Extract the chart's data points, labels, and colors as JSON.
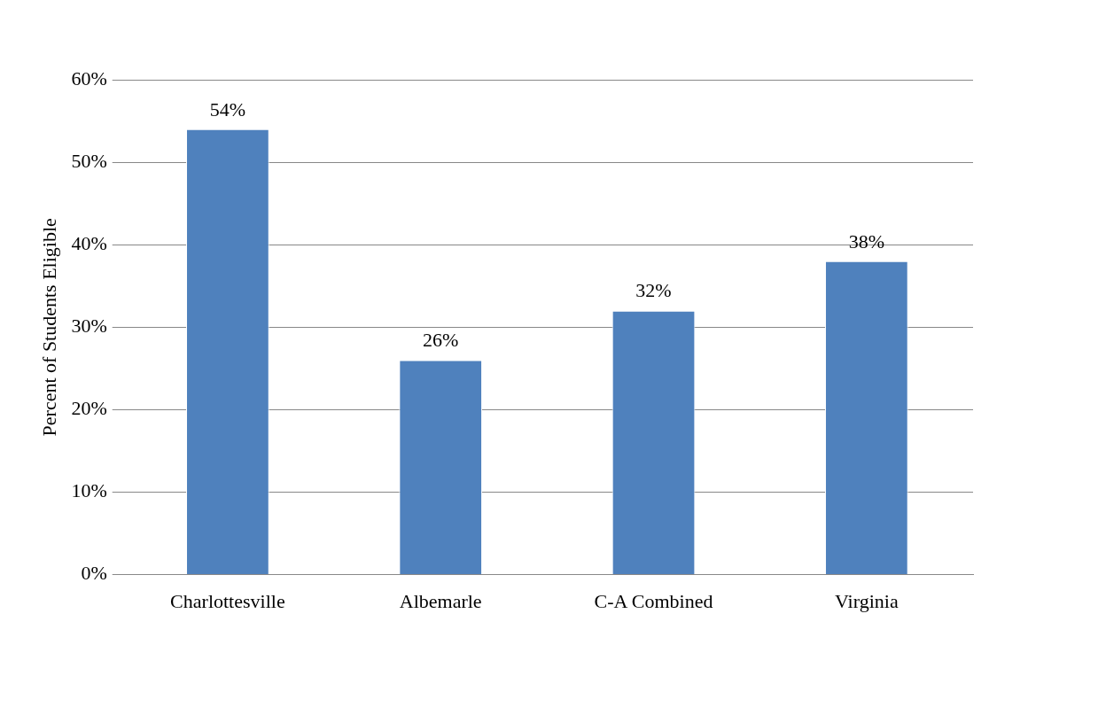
{
  "chart_data": {
    "type": "bar",
    "ylabel": "Percent of Students Eligible",
    "categories": [
      "Charlottesville",
      "Albemarle",
      "C-A Combined",
      "Virginia"
    ],
    "values": [
      54,
      26,
      32,
      38
    ],
    "value_labels": [
      "54%",
      "26%",
      "32%",
      "38%"
    ],
    "color": "#4f81bd",
    "ylim": [
      0,
      60
    ],
    "yticks": [
      {
        "value": 0,
        "label": "0%"
      },
      {
        "value": 10,
        "label": "10%"
      },
      {
        "value": 20,
        "label": "20%"
      },
      {
        "value": 30,
        "label": "30%"
      },
      {
        "value": 40,
        "label": "40%"
      },
      {
        "value": 50,
        "label": "50%"
      },
      {
        "value": 60,
        "label": "60%"
      }
    ],
    "grid": "y",
    "legend": false
  }
}
